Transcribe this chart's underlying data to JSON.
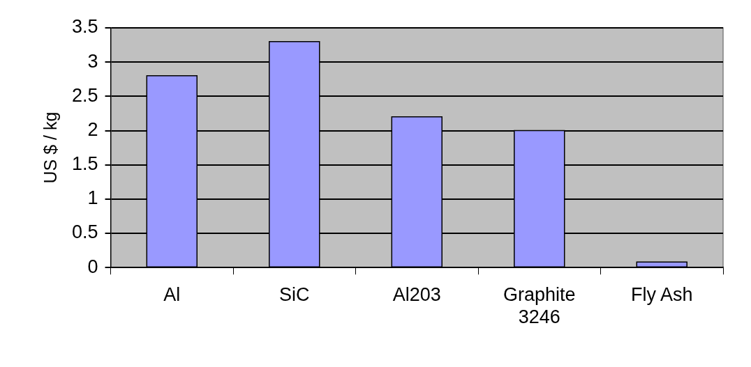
{
  "chart_data": {
    "type": "bar",
    "ylabel": "US $ / kg",
    "categories": [
      "Al",
      "SiC",
      "Al203",
      "Graphite\n3246",
      "Fly Ash"
    ],
    "values": [
      2.8,
      3.3,
      2.2,
      2.0,
      0.08
    ],
    "color": "#9999ff",
    "ylim": [
      0,
      3.5
    ],
    "yticks": [
      0,
      0.5,
      1,
      1.5,
      2,
      2.5,
      3,
      3.5
    ],
    "grid": "y",
    "legend": false
  }
}
